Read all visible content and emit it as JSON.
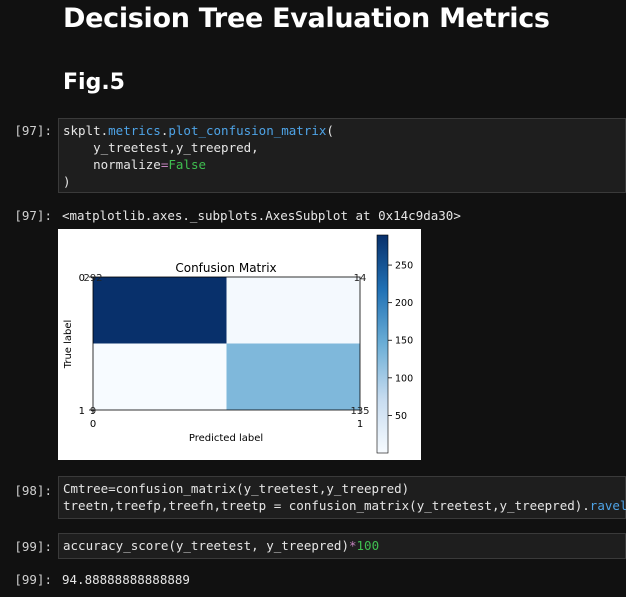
{
  "heading": "Decision Tree Evaluation Metrics",
  "subheading": "Fig.5",
  "cells": [
    {
      "prompt": "[97]:",
      "code": {
        "l1_a": "skplt.",
        "l1_b": "metrics",
        "l1_c": ".",
        "l1_d": "plot_confusion_matrix",
        "l1_e": "(",
        "l2": "    y_treetest,y_treepred,",
        "l3_a": "    normalize",
        "l3_b": "=",
        "l3_c": "False",
        "l4": ")"
      }
    },
    {
      "prompt": "[98]:",
      "code": {
        "l1": "Cmtree=confusion_matrix(y_treetest,y_treepred)",
        "l2_a": "treetn,treefp,treefn,treetp = confusion_matrix(y_treetest,y_treepred).",
        "l2_b": "ravel",
        "l2_c": "()"
      }
    },
    {
      "prompt": "[99]:",
      "code": {
        "a": "accuracy_score(y_treetest, y_treepred)",
        "b": "*",
        "c": "100"
      }
    }
  ],
  "outputs": {
    "o97_prompt": "[97]:",
    "o97": "<matplotlib.axes._subplots.AxesSubplot at 0x14c9da30>",
    "o99_prompt": "[99]:",
    "o99": "94.88888888888889"
  },
  "chart_data": {
    "type": "heatmap",
    "title": "Confusion Matrix",
    "xlabel": "Predicted label",
    "ylabel": "True label",
    "x_ticks": [
      "0",
      "1"
    ],
    "y_ticks": [
      "0",
      "1"
    ],
    "matrix": [
      [
        292,
        14
      ],
      [
        9,
        135
      ]
    ],
    "colormap": "Blues",
    "colorbar_ticks": [
      "250",
      "200",
      "150",
      "100",
      "50"
    ],
    "colorbar_range": [
      9,
      292
    ]
  }
}
